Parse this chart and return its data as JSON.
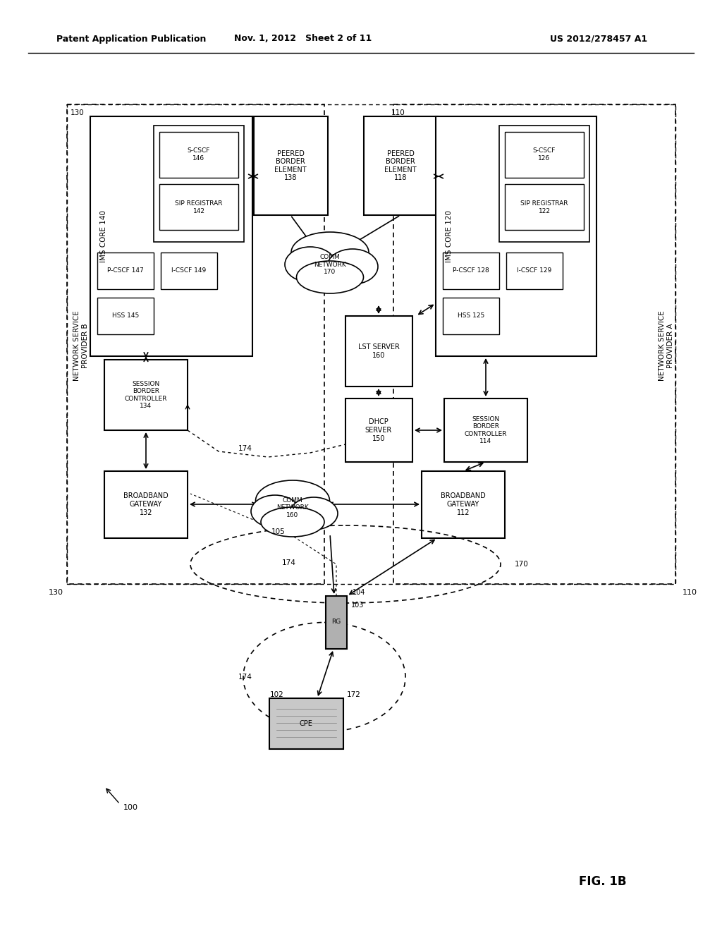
{
  "title_left": "Patent Application Publication",
  "title_mid": "Nov. 1, 2012   Sheet 2 of 11",
  "title_right": "US 2012/278457 A1",
  "fig_label": "FIG. 1B",
  "background": "#ffffff",
  "border_color": "#000000",
  "text_color": "#000000"
}
